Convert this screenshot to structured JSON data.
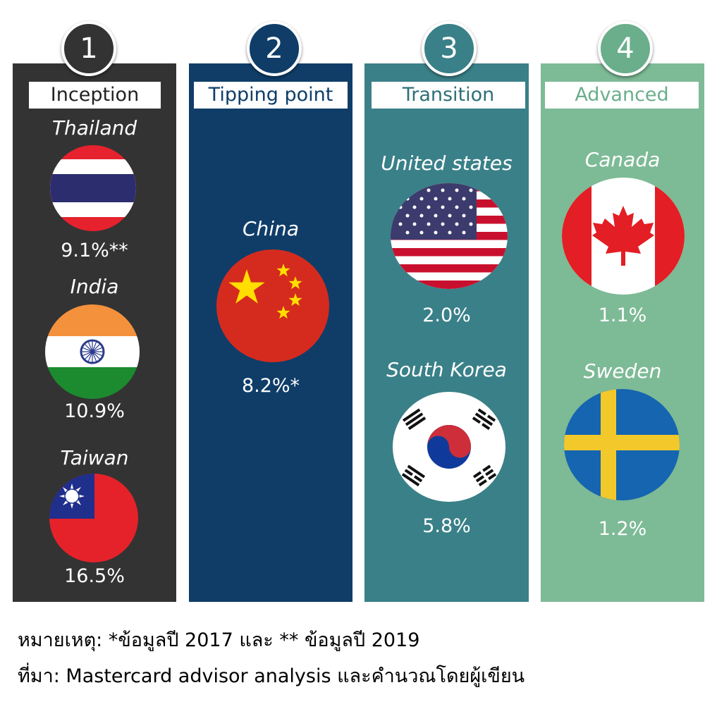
{
  "stages": [
    {
      "number": "1",
      "label": "Inception",
      "color": "#333333",
      "countries": [
        {
          "name": "Thailand",
          "value": "9.1%**",
          "flag": "thailand-flag"
        },
        {
          "name": "India",
          "value": "10.9%",
          "flag": "india-flag"
        },
        {
          "name": "Taiwan",
          "value": "16.5%",
          "flag": "taiwan-flag"
        }
      ]
    },
    {
      "number": "2",
      "label": "Tipping point",
      "color": "#0f3d68",
      "countries": [
        {
          "name": "China",
          "value": "8.2%*",
          "flag": "china-flag"
        }
      ]
    },
    {
      "number": "3",
      "label": "Transition",
      "color": "#3a8088",
      "countries": [
        {
          "name": "United states",
          "value": "2.0%",
          "flag": "usa-flag"
        },
        {
          "name": "South Korea",
          "value": "5.8%",
          "flag": "south-korea-flag"
        }
      ]
    },
    {
      "number": "4",
      "label": "Advanced",
      "color": "#7dba96",
      "countries": [
        {
          "name": "Canada",
          "value": "1.1%",
          "flag": "canada-flag"
        },
        {
          "name": "Sweden",
          "value": "1.2%",
          "flag": "sweden-flag"
        }
      ]
    }
  ],
  "footnote": "หมายเหตุ: *ข้อมูลปี 2017 และ ** ข้อมูลปี 2019",
  "source": "ที่มา: Mastercard advisor analysis และคำนวณโดยผู้เขียน"
}
